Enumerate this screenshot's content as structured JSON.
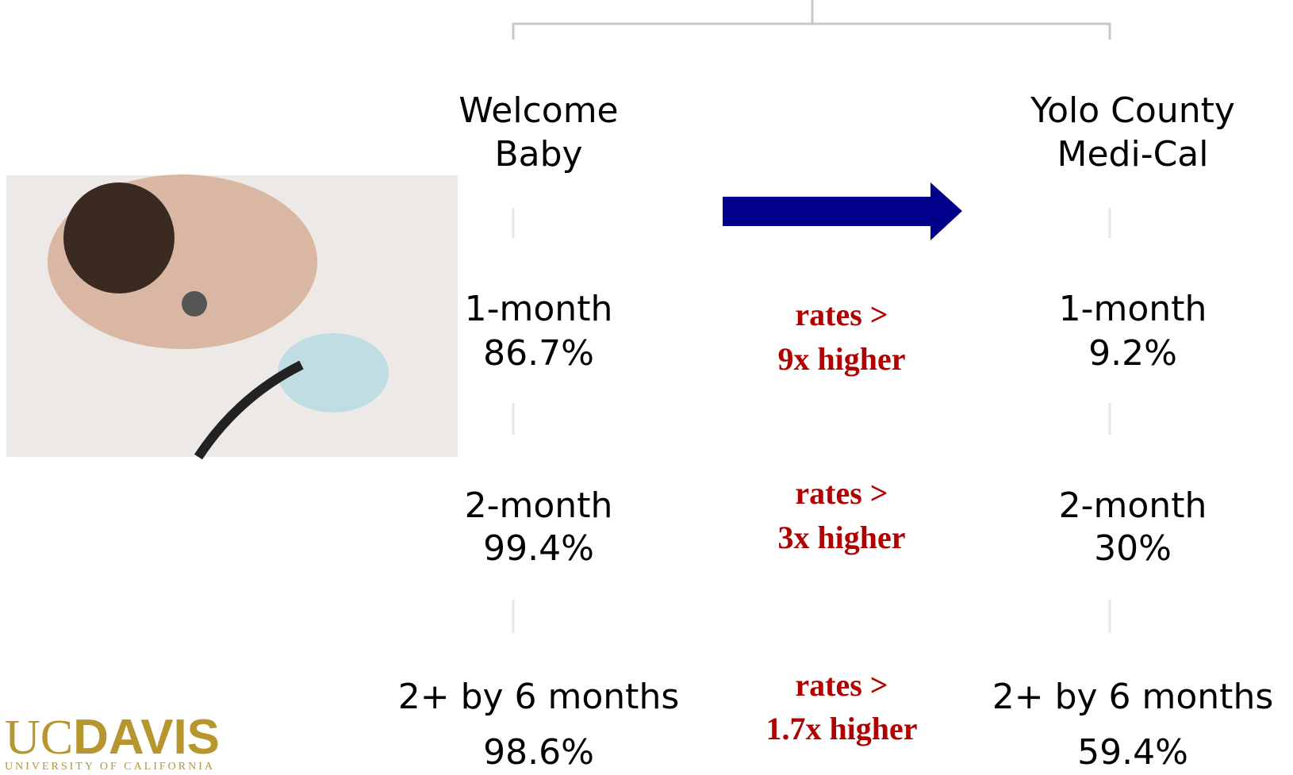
{
  "columns": [
    {
      "header": [
        "Welcome",
        "Baby"
      ],
      "items": [
        {
          "label": "1-month",
          "value": "86.7%"
        },
        {
          "label": "2-month",
          "value": "99.4%"
        },
        {
          "label": "2+ by 6 months",
          "value": "98.6%"
        }
      ]
    },
    {
      "header": [
        "Yolo County",
        "Medi-Cal"
      ],
      "items": [
        {
          "label": "1-month",
          "value": "9.2%"
        },
        {
          "label": "2-month",
          "value": "30%"
        },
        {
          "label": "2+ by 6 months",
          "value": "59.4%"
        }
      ]
    }
  ],
  "comparisons": [
    [
      "rates >",
      "9x higher"
    ],
    [
      "rates >",
      "3x higher"
    ],
    [
      "rates >",
      "1.7x higher"
    ]
  ],
  "logo": {
    "uc": "UC",
    "davis": "DAVIS",
    "subtitle": "UNIVERSITY OF CALIFORNIA"
  }
}
